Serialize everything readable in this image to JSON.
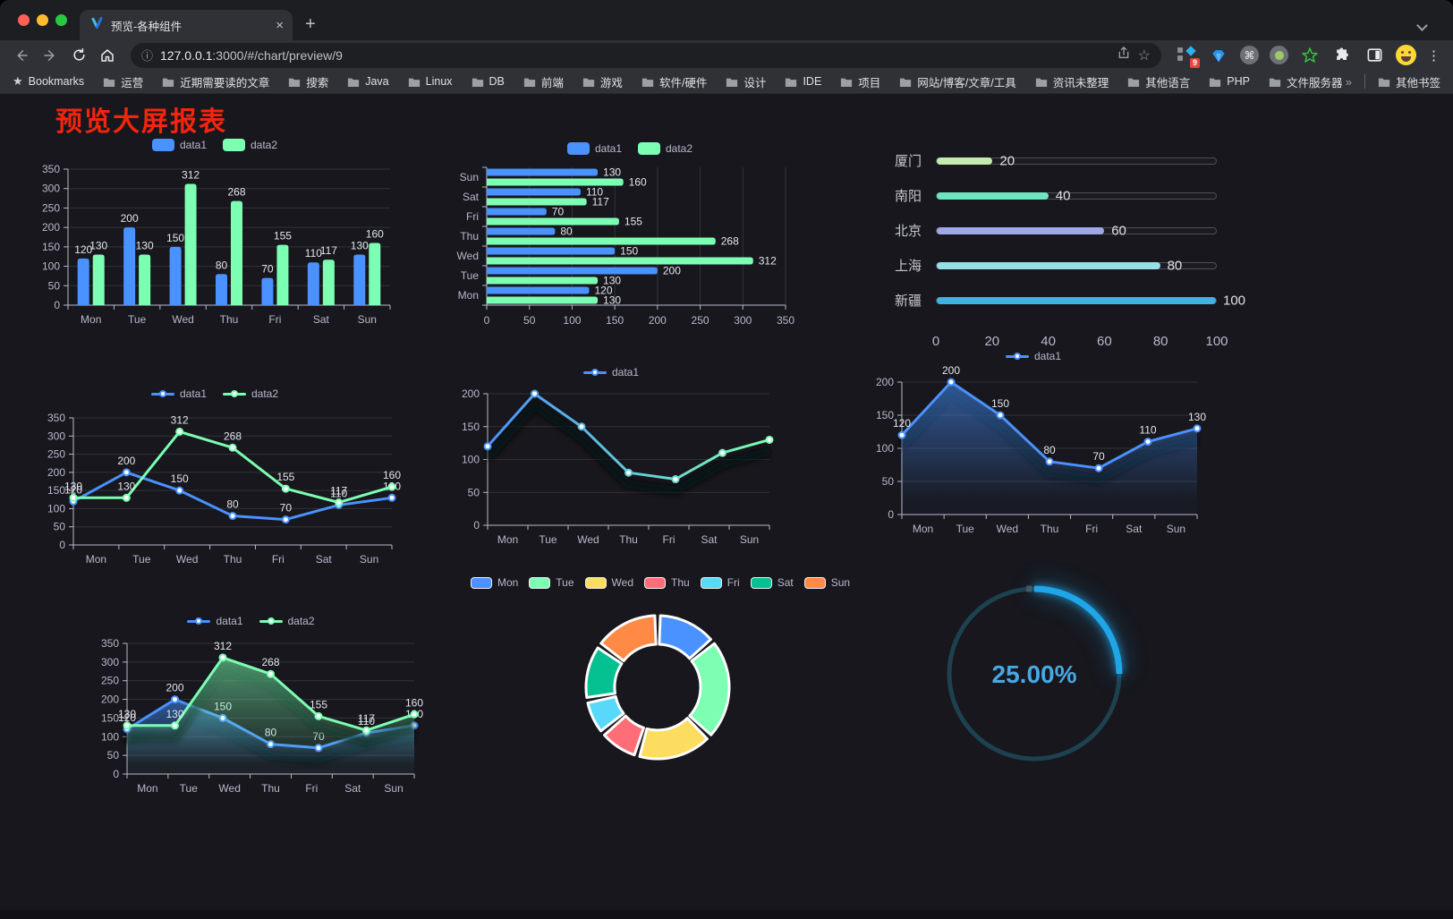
{
  "browser": {
    "tab": {
      "title": "预览-各种组件",
      "close_glyph": "×",
      "new_tab_glyph": "+"
    },
    "url": {
      "host": "127.0.0.1",
      "rest": ":3000/#/chart/preview/9"
    },
    "toolbar": {
      "extension_badge": "9",
      "kebab_glyph": "⋮",
      "command_glyph": "⌘",
      "star_glyph": "☆",
      "info_glyph": "ⓘ"
    },
    "bookmarks": {
      "root_label": "Bookmarks",
      "folders": [
        "运营",
        "近期需要读的文章",
        "搜索",
        "Java",
        "Linux",
        "DB",
        "前端",
        "游戏",
        "软件/硬件",
        "设计",
        "IDE",
        "项目",
        "网站/博客/文章/工具",
        "资讯未整理",
        "其他语言",
        "PHP",
        "文件服务器"
      ],
      "overflow_glyph": "»",
      "other_label": "其他书签",
      "star_glyph": "★"
    }
  },
  "page": {
    "title": "预览大屏报表",
    "title_color": "#f3250e",
    "background": "#17171d"
  },
  "chart_data": [
    {
      "type": "bar",
      "legend_style": "pill",
      "labels": true,
      "categories": [
        "Mon",
        "Tue",
        "Wed",
        "Thu",
        "Fri",
        "Sat",
        "Sun"
      ],
      "series": [
        {
          "name": "data1",
          "color": "#4992ff",
          "values": [
            120,
            200,
            150,
            80,
            70,
            110,
            130
          ]
        },
        {
          "name": "data2",
          "color": "#7cffb2",
          "values": [
            130,
            130,
            312,
            268,
            155,
            117,
            160
          ]
        }
      ],
      "ylim": [
        0,
        350
      ],
      "interval": 50,
      "grid": true
    },
    {
      "type": "hbar",
      "legend_style": "pill",
      "labels": true,
      "categories": [
        "Mon",
        "Tue",
        "Wed",
        "Thu",
        "Fri",
        "Sat",
        "Sun"
      ],
      "series": [
        {
          "name": "data1",
          "color": "#4992ff",
          "values": [
            120,
            200,
            150,
            80,
            70,
            110,
            130
          ]
        },
        {
          "name": "data2",
          "color": "#7cffb2",
          "values": [
            130,
            130,
            312,
            268,
            155,
            117,
            160
          ]
        }
      ],
      "xlim": [
        0,
        350
      ],
      "interval": 50,
      "grid": true
    },
    {
      "type": "progress",
      "max": 100,
      "axis_ticks": [
        0,
        20,
        40,
        60,
        80,
        100
      ],
      "items": [
        {
          "label": "厦门",
          "value": 20,
          "color": "#c4ebad"
        },
        {
          "label": "南阳",
          "value": 40,
          "color": "#6be6c1"
        },
        {
          "label": "北京",
          "value": 60,
          "color": "#a0a7e6"
        },
        {
          "label": "上海",
          "value": 80,
          "color": "#96dee8"
        },
        {
          "label": "新疆",
          "value": 100,
          "color": "#3fb1e3"
        }
      ]
    },
    {
      "type": "line",
      "legend_style": "line",
      "labels": true,
      "categories": [
        "Mon",
        "Tue",
        "Wed",
        "Thu",
        "Fri",
        "Sat",
        "Sun"
      ],
      "series": [
        {
          "name": "data1",
          "color": "#4992ff",
          "values": [
            120,
            200,
            150,
            80,
            70,
            110,
            130
          ]
        },
        {
          "name": "data2",
          "color": "#7cffb2",
          "values": [
            130,
            130,
            312,
            268,
            155,
            117,
            160
          ]
        }
      ],
      "ylim": [
        0,
        350
      ],
      "interval": 50,
      "grid": true
    },
    {
      "type": "line",
      "legend_style": "line",
      "labels": false,
      "shadow": true,
      "categories": [
        "Mon",
        "Tue",
        "Wed",
        "Thu",
        "Fri",
        "Sat",
        "Sun"
      ],
      "series": [
        {
          "name": "data1",
          "gradient": [
            "#4992ff",
            "#7cffb2"
          ],
          "values": [
            120,
            200,
            150,
            80,
            70,
            110,
            130
          ]
        }
      ],
      "ylim": [
        0,
        200
      ],
      "interval": 50,
      "grid": true
    },
    {
      "type": "line",
      "legend_style": "line",
      "labels": true,
      "area": true,
      "shadow": true,
      "categories": [
        "Mon",
        "Tue",
        "Wed",
        "Thu",
        "Fri",
        "Sat",
        "Sun"
      ],
      "series": [
        {
          "name": "data1",
          "color": "#4992ff",
          "values": [
            120,
            200,
            150,
            80,
            70,
            110,
            130
          ]
        }
      ],
      "ylim": [
        0,
        200
      ],
      "interval": 50,
      "grid": true
    },
    {
      "type": "line",
      "legend_style": "line",
      "labels": true,
      "area": true,
      "shadow": true,
      "categories": [
        "Mon",
        "Tue",
        "Wed",
        "Thu",
        "Fri",
        "Sat",
        "Sun"
      ],
      "series": [
        {
          "name": "data1",
          "color": "#4992ff",
          "values": [
            120,
            200,
            150,
            80,
            70,
            110,
            130
          ]
        },
        {
          "name": "data2",
          "color": "#7cffb2",
          "values": [
            130,
            130,
            312,
            268,
            155,
            117,
            160
          ]
        }
      ],
      "ylim": [
        0,
        350
      ],
      "interval": 50,
      "grid": true
    },
    {
      "type": "donut",
      "legend_style": "pie",
      "categories": [
        "Mon",
        "Tue",
        "Wed",
        "Thu",
        "Fri",
        "Sat",
        "Sun"
      ],
      "values": [
        120,
        200,
        150,
        80,
        70,
        110,
        130
      ],
      "colors": [
        "#4992ff",
        "#7cffb2",
        "#fddd60",
        "#ff6e76",
        "#58d9f9",
        "#05c091",
        "#ff8a45"
      ]
    },
    {
      "type": "gauge",
      "value": 25,
      "max": 100,
      "label": "25.00%",
      "arc_color": "#1fa6e8",
      "track_color": "#1e4150",
      "text_color": "#49a7e3"
    }
  ]
}
